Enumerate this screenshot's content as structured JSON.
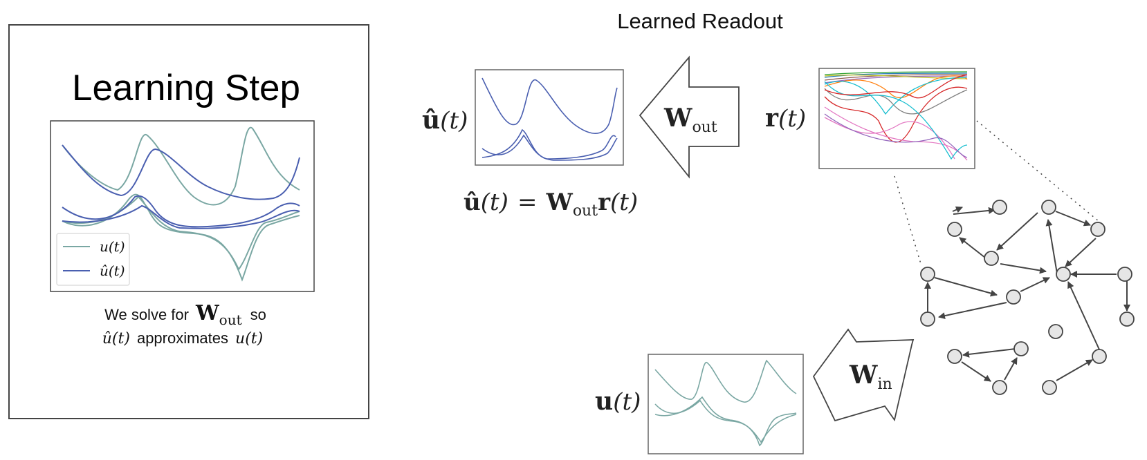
{
  "learning_panel": {
    "title": "Learning Step",
    "legend": [
      {
        "label": "u(t)",
        "color": "#7aa7a3"
      },
      {
        "label": "û(t)",
        "color": "#4a5fb0"
      }
    ],
    "caption_line1_prefix": "We solve for",
    "caption_line1_symbol": "W",
    "caption_line1_subscript": "out",
    "caption_line1_suffix": "so",
    "caption_line2_a": "û(t)",
    "caption_line2_b": "approximates",
    "caption_line2_c": "u(t)"
  },
  "readout": {
    "header": "Learned Readout",
    "uhat_label": "û",
    "uhat_arg": "(t)",
    "wout_symbol": "W",
    "wout_subscript": "out",
    "r_label": "r",
    "r_arg": "(t)",
    "eq_lhs": "û",
    "eq_lhs_arg": "(t)",
    "eq_equals": "=",
    "eq_W": "W",
    "eq_W_sub": "out",
    "eq_r": "r",
    "eq_r_arg": "(t)"
  },
  "input": {
    "u_label": "u",
    "u_arg": "(t)",
    "win_symbol": "W",
    "win_subscript": "in"
  },
  "colors": {
    "teal": "#7aa7a3",
    "blue": "#4a5fb0",
    "node_fill": "#e6e6e6",
    "edge": "#444444"
  }
}
